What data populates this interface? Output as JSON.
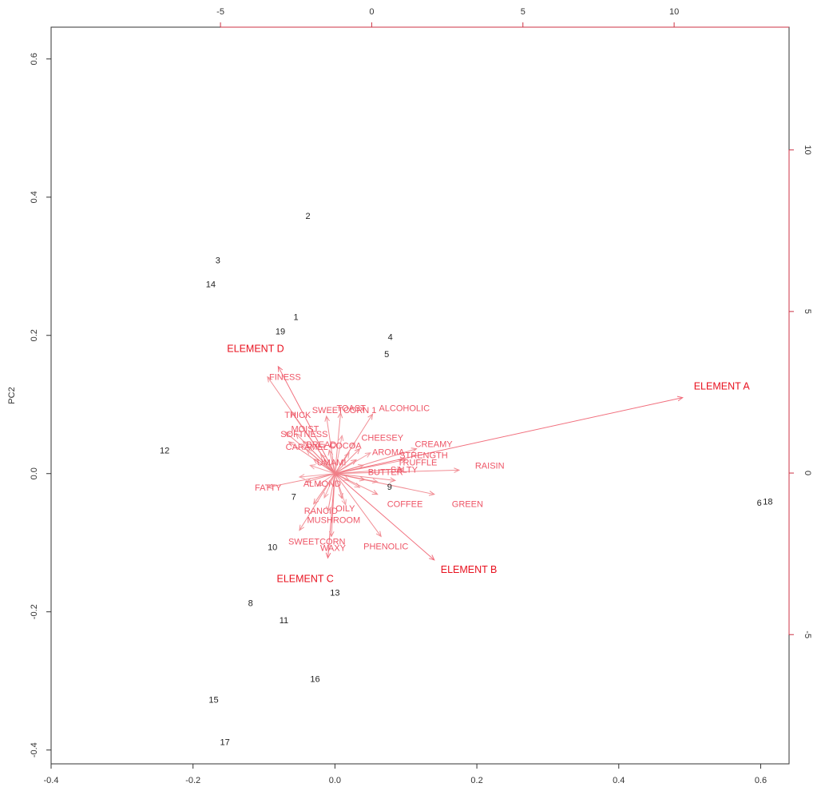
{
  "chart_data": {
    "type": "scatter",
    "subtype": "biplot",
    "title": "",
    "xlabel": "",
    "ylabel": "PC2",
    "xlim": [
      -0.4,
      0.64
    ],
    "ylim": [
      -0.42,
      0.646
    ],
    "x_ticks": [
      "-0.4",
      "-0.2",
      "0.0",
      "0.2",
      "0.4",
      "0.6"
    ],
    "y_ticks": [
      "-0.4",
      "-0.2",
      "0.0",
      "0.2",
      "0.4",
      "0.6"
    ],
    "x_tick_values": [
      -0.4,
      -0.2,
      0.0,
      0.2,
      0.4,
      0.6
    ],
    "y_tick_values": [
      -0.4,
      -0.2,
      0.0,
      0.2,
      0.4,
      0.6
    ],
    "secondary_xlim": [
      -10.6,
      13.8
    ],
    "secondary_ylim": [
      -9.0,
      13.8
    ],
    "top_ticks": [
      "-5",
      "0",
      "5",
      "10"
    ],
    "top_tick_values": [
      -5,
      0,
      5,
      10
    ],
    "right_ticks": [
      "-5",
      "0",
      "5",
      "10"
    ],
    "right_tick_values": [
      -5,
      0,
      5,
      10
    ],
    "grid": false,
    "colors": {
      "points": "#222222",
      "vectors": "#f08088",
      "vector_labels": "#ee5566",
      "highlight": "#e8101e",
      "frame": "#333333",
      "secondary_axes": "#cc3344"
    },
    "points": [
      {
        "label": "1",
        "x": -0.055,
        "y": 0.227
      },
      {
        "label": "2",
        "x": -0.038,
        "y": 0.373
      },
      {
        "label": "3",
        "x": -0.165,
        "y": 0.309
      },
      {
        "label": "4",
        "x": 0.078,
        "y": 0.198
      },
      {
        "label": "5",
        "x": 0.073,
        "y": 0.173
      },
      {
        "label": "6",
        "x": 0.598,
        "y": -0.042
      },
      {
        "label": "7",
        "x": -0.058,
        "y": -0.033
      },
      {
        "label": "8",
        "x": -0.119,
        "y": -0.187
      },
      {
        "label": "9",
        "x": 0.077,
        "y": -0.019
      },
      {
        "label": "10",
        "x": -0.088,
        "y": -0.106
      },
      {
        "label": "11",
        "x": -0.072,
        "y": -0.212
      },
      {
        "label": "12",
        "x": -0.24,
        "y": 0.034
      },
      {
        "label": "13",
        "x": 0.0,
        "y": -0.172
      },
      {
        "label": "14",
        "x": -0.175,
        "y": 0.274
      },
      {
        "label": "15",
        "x": -0.171,
        "y": -0.327
      },
      {
        "label": "16",
        "x": -0.028,
        "y": -0.297
      },
      {
        "label": "17",
        "x": -0.155,
        "y": -0.388
      },
      {
        "label": "18",
        "x": 0.61,
        "y": -0.04
      },
      {
        "label": "19",
        "x": -0.077,
        "y": 0.206
      }
    ],
    "vectors": [
      {
        "label": "ELEMENT A",
        "x": 0.49,
        "y": 0.11,
        "strong": true
      },
      {
        "label": "ELEMENT B",
        "x": 0.14,
        "y": -0.125,
        "strong": true
      },
      {
        "label": "ELEMENT C",
        "x": -0.01,
        "y": -0.122,
        "strong": true
      },
      {
        "label": "ELEMENT D",
        "x": -0.08,
        "y": 0.155,
        "strong": true
      },
      {
        "label": "FINESS",
        "x": -0.095,
        "y": 0.14
      },
      {
        "label": "TOAST",
        "x": 0.008,
        "y": 0.088
      },
      {
        "label": "ALCOHOLIC",
        "x": 0.053,
        "y": 0.086
      },
      {
        "label": "THICK",
        "x": -0.062,
        "y": 0.09
      },
      {
        "label": "SWEETCORN 1",
        "x": -0.012,
        "y": 0.083
      },
      {
        "label": "SOFTNESS",
        "x": -0.07,
        "y": 0.06
      },
      {
        "label": "MOIST",
        "x": -0.055,
        "y": 0.058
      },
      {
        "label": "CARAMEL",
        "x": -0.065,
        "y": 0.046
      },
      {
        "label": "BREAD",
        "x": -0.045,
        "y": 0.047
      },
      {
        "label": "COCOA",
        "x": -0.008,
        "y": 0.034
      },
      {
        "label": "UMAMI",
        "x": -0.03,
        "y": 0.021
      },
      {
        "label": "CHEESEY",
        "x": 0.035,
        "y": 0.036
      },
      {
        "label": "CREAMY",
        "x": 0.115,
        "y": 0.036
      },
      {
        "label": "AROMA",
        "x": 0.03,
        "y": 0.02
      },
      {
        "label": "STRENGTH",
        "x": 0.1,
        "y": 0.02
      },
      {
        "label": "TRUFFLE",
        "x": 0.095,
        "y": 0.007
      },
      {
        "label": "RAISIN",
        "x": 0.175,
        "y": 0.005
      },
      {
        "label": "FATTY",
        "x": -0.095,
        "y": -0.02
      },
      {
        "label": "ALMOND",
        "x": -0.04,
        "y": -0.012
      },
      {
        "label": "BUTTER",
        "x": 0.042,
        "y": -0.009
      },
      {
        "label": "SALTY",
        "x": 0.085,
        "y": -0.01
      },
      {
        "label": "COFFEE",
        "x": 0.06,
        "y": -0.03
      },
      {
        "label": "GREEN",
        "x": 0.14,
        "y": -0.03
      },
      {
        "label": "OILY",
        "x": 0.01,
        "y": -0.036
      },
      {
        "label": "RANCID",
        "x": -0.03,
        "y": -0.044
      },
      {
        "label": "MUSHROOM",
        "x": -0.01,
        "y": -0.055
      },
      {
        "label": "SWEETCORN",
        "x": -0.05,
        "y": -0.082
      },
      {
        "label": "WAXY",
        "x": -0.005,
        "y": -0.091
      },
      {
        "label": "PHENOLIC",
        "x": 0.065,
        "y": -0.091
      }
    ],
    "extra_vectors": [
      [
        0.02,
        0.03
      ],
      [
        -0.02,
        0.028
      ],
      [
        0.035,
        -0.02
      ],
      [
        -0.025,
        -0.018
      ],
      [
        0.04,
        0.012
      ],
      [
        0.015,
        -0.045
      ],
      [
        -0.035,
        0.012
      ],
      [
        0.05,
        0.03
      ],
      [
        -0.015,
        -0.035
      ],
      [
        0.028,
        0.045
      ],
      [
        -0.04,
        0.035
      ],
      [
        0.06,
        -0.012
      ],
      [
        0.01,
        0.055
      ],
      [
        -0.05,
        -0.005
      ],
      [
        0.02,
        -0.01
      ]
    ],
    "label_offsets": {
      "FINESS": [
        2,
        0
      ],
      "TOAST": [
        -5,
        -6
      ],
      "ALCOHOLIC": [
        8,
        -8
      ],
      "THICK": [
        -8,
        4
      ],
      "SWEETCORN 1": [
        -18,
        -8
      ],
      "SOFTNESS": [
        -6,
        2
      ],
      "MOIST": [
        -6,
        -6
      ],
      "CARAMEL": [
        -4,
        6
      ],
      "BREAD": [
        4,
        4
      ],
      "COCOA": [
        0,
        -6
      ],
      "UMAMI": [
        4,
        4
      ],
      "CHEESEY": [
        2,
        -14
      ],
      "CREAMY": [
        -2,
        -6
      ],
      "AROMA": [
        20,
        -10
      ],
      "STRENGTH": [
        -8,
        -6
      ],
      "TRUFFLE": [
        -6,
        -8
      ],
      "RAISIN": [
        20,
        -6
      ],
      "FATTY": [
        -16,
        0
      ],
      "ALMOND": [
        -4,
        2
      ],
      "BUTTER": [
        4,
        -10
      ],
      "SALTY": [
        -6,
        -14
      ],
      "COFFEE": [
        12,
        12
      ],
      "GREEN": [
        22,
        12
      ],
      "OILY": [
        -8,
        12
      ],
      "RANCID": [
        -12,
        8
      ],
      "MUSHROOM": [
        -26,
        10
      ],
      "SWEETCORN": [
        -14,
        14
      ],
      "WAXY": [
        -14,
        14
      ],
      "PHENOLIC": [
        -22,
        12
      ],
      "ELEMENT A": [
        14,
        -14
      ],
      "ELEMENT B": [
        8,
        12
      ],
      "ELEMENT C": [
        -64,
        26
      ],
      "ELEMENT D": [
        -64,
        -22
      ]
    }
  }
}
